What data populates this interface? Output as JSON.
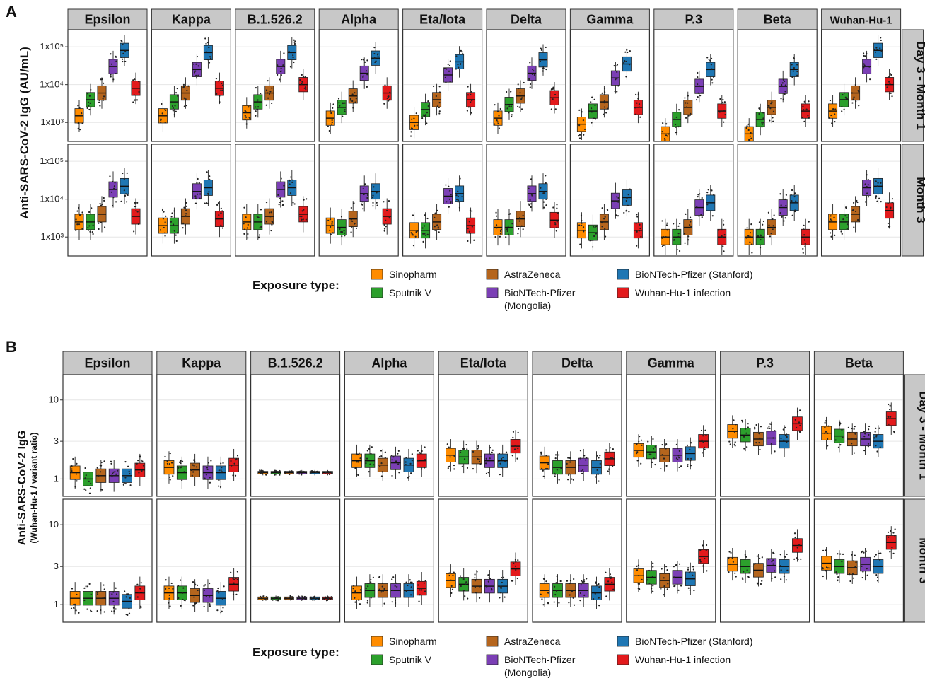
{
  "colors": {
    "Sinopharm": "#ff8c00",
    "Sputnik V": "#2ca02c",
    "AstraZeneca": "#b5651d",
    "BioNTech-Pfizer (Mongolia)": "#7b3fb5",
    "BioNTech-Pfizer (Stanford)": "#1f77b4",
    "Wuhan-Hu-1 infection": "#e31a1c"
  },
  "chart_data": [
    {
      "type": "box",
      "panel_label": "A",
      "ylabel": "Anti-SARS-CoV-2 IgG (AU/mL)",
      "yscale": "log",
      "yticks": [
        "1x10³",
        "1x10⁴",
        "1x10⁵"
      ],
      "columns": [
        "Epsilon",
        "Kappa",
        "B.1.526.2",
        "Alpha",
        "Eta/Iota",
        "Delta",
        "Gamma",
        "P.3",
        "Beta",
        "Wuhan-Hu-1"
      ],
      "rows": [
        "Day 3 - Month 1",
        "Month 3"
      ],
      "groups": [
        "Sinopharm",
        "Sputnik V",
        "AstraZeneca",
        "BioNTech-Pfizer (Mongolia)",
        "BioNTech-Pfizer (Stanford)",
        "Wuhan-Hu-1 infection"
      ],
      "series": [
        {
          "name": "Day 3 - Month 1",
          "medians_by_column": [
            [
              1500,
              4000,
              6000,
              30000,
              80000,
              8000
            ],
            [
              1500,
              3500,
              6000,
              25000,
              70000,
              8000
            ],
            [
              1800,
              3500,
              6000,
              30000,
              70000,
              10000
            ],
            [
              1300,
              2500,
              5000,
              20000,
              50000,
              6000
            ],
            [
              1000,
              2200,
              4000,
              18000,
              40000,
              4000
            ],
            [
              1300,
              3000,
              5000,
              20000,
              45000,
              4500
            ],
            [
              900,
              2000,
              3500,
              15000,
              35000,
              2500
            ],
            [
              500,
              1200,
              2500,
              9000,
              25000,
              2000
            ],
            [
              500,
              1200,
              2500,
              9000,
              25000,
              2000
            ],
            [
              2000,
              4000,
              6000,
              30000,
              80000,
              10000
            ]
          ]
        },
        {
          "name": "Month 3",
          "medians_by_column": [
            [
              2500,
              2500,
              4000,
              18000,
              22000,
              3500
            ],
            [
              2000,
              2000,
              3500,
              16000,
              20000,
              3000
            ],
            [
              2500,
              2500,
              3500,
              18000,
              20000,
              4000
            ],
            [
              2000,
              1800,
              3000,
              14000,
              16000,
              3500
            ],
            [
              1500,
              1500,
              2500,
              12000,
              14000,
              2000
            ],
            [
              1800,
              1800,
              3000,
              14000,
              16000,
              2800
            ],
            [
              1500,
              1300,
              2500,
              9000,
              11000,
              1500
            ],
            [
              1000,
              1000,
              1800,
              6000,
              8000,
              1000
            ],
            [
              1000,
              1000,
              1800,
              6000,
              8000,
              1000
            ],
            [
              2500,
              2500,
              4000,
              20000,
              22000,
              5000
            ]
          ]
        }
      ]
    },
    {
      "type": "box",
      "panel_label": "B",
      "ylabel": "Anti-SARS-CoV-2 IgG",
      "ylabel_sub": "(Wuhan-Hu-1 / variant ratio)",
      "yscale": "log",
      "yticks": [
        "1",
        "3",
        "10"
      ],
      "columns": [
        "Epsilon",
        "Kappa",
        "B.1.526.2",
        "Alpha",
        "Eta/Iota",
        "Delta",
        "Gamma",
        "P.3",
        "Beta"
      ],
      "rows": [
        "Day 3 - Month 1",
        "Month 3"
      ],
      "groups": [
        "Sinopharm",
        "Sputnik V",
        "AstraZeneca",
        "BioNTech-Pfizer (Mongolia)",
        "BioNTech-Pfizer (Stanford)",
        "Wuhan-Hu-1 infection"
      ],
      "series": [
        {
          "name": "Day 3 - Month 1",
          "medians_by_column": [
            [
              1.2,
              1.0,
              1.1,
              1.1,
              1.1,
              1.3
            ],
            [
              1.4,
              1.2,
              1.3,
              1.2,
              1.2,
              1.5
            ],
            [
              1.2,
              1.2,
              1.2,
              1.2,
              1.2,
              1.2
            ],
            [
              1.7,
              1.7,
              1.5,
              1.6,
              1.5,
              1.7
            ],
            [
              2.0,
              1.9,
              1.9,
              1.7,
              1.7,
              2.6
            ],
            [
              1.6,
              1.4,
              1.4,
              1.5,
              1.4,
              1.8
            ],
            [
              2.3,
              2.2,
              2.0,
              2.0,
              2.1,
              3.0
            ],
            [
              4.0,
              3.6,
              3.2,
              3.3,
              3.0,
              5.0
            ],
            [
              3.8,
              3.5,
              3.2,
              3.2,
              3.0,
              5.8
            ]
          ]
        },
        {
          "name": "Month 3",
          "medians_by_column": [
            [
              1.2,
              1.2,
              1.2,
              1.2,
              1.1,
              1.4
            ],
            [
              1.4,
              1.4,
              1.3,
              1.3,
              1.2,
              1.8
            ],
            [
              1.2,
              1.2,
              1.2,
              1.2,
              1.2,
              1.2
            ],
            [
              1.4,
              1.5,
              1.5,
              1.5,
              1.5,
              1.6
            ],
            [
              2.0,
              1.8,
              1.7,
              1.7,
              1.7,
              2.8
            ],
            [
              1.5,
              1.5,
              1.5,
              1.5,
              1.4,
              1.8
            ],
            [
              2.3,
              2.2,
              2.0,
              2.2,
              2.1,
              4.0
            ],
            [
              3.2,
              3.0,
              2.7,
              3.1,
              3.0,
              5.5
            ],
            [
              3.3,
              3.0,
              2.9,
              3.2,
              3.0,
              6.0
            ]
          ]
        }
      ]
    }
  ],
  "legend": {
    "title": "Exposure type:",
    "items": [
      {
        "label": "Sinopharm",
        "label2": ""
      },
      {
        "label": "Sputnik V",
        "label2": ""
      },
      {
        "label": "AstraZeneca",
        "label2": ""
      },
      {
        "label": "BioNTech-Pfizer",
        "label2": "(Mongolia)"
      },
      {
        "label": "BioNTech-Pfizer (Stanford)",
        "label2": ""
      },
      {
        "label": "Wuhan-Hu-1 infection",
        "label2": ""
      }
    ]
  }
}
